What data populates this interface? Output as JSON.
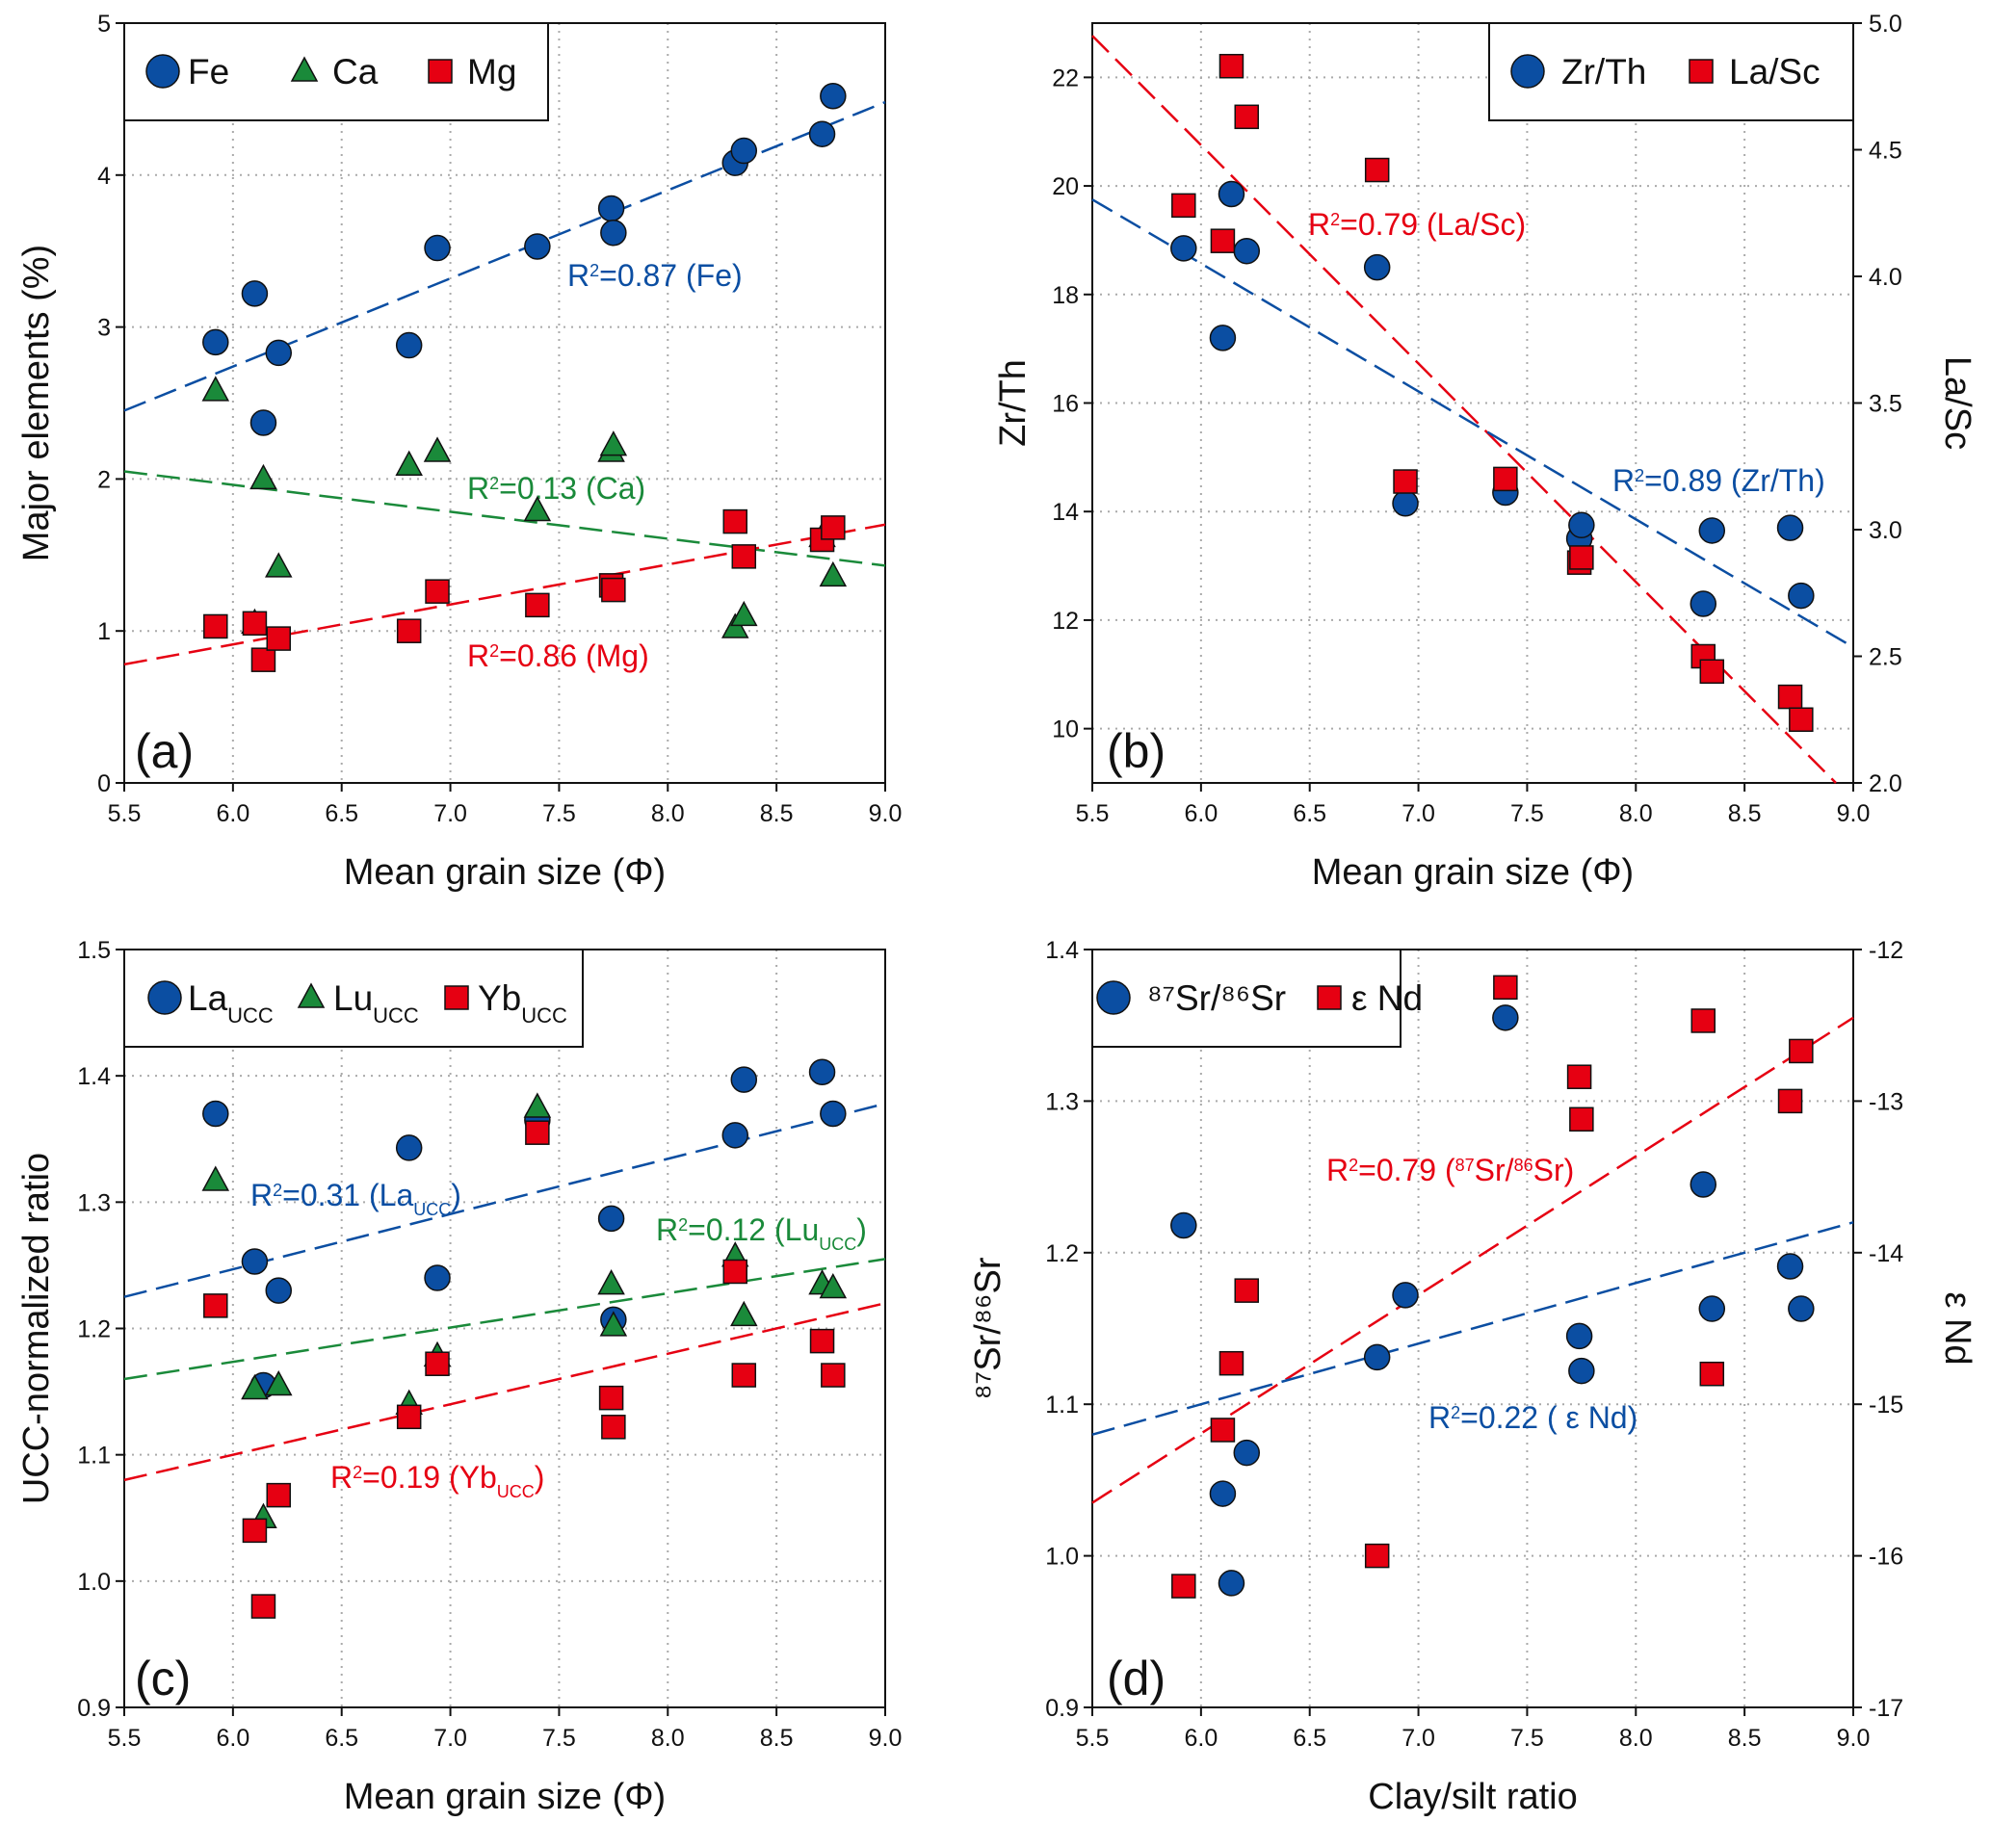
{
  "chart_data": [
    {
      "panel_label": "(a)",
      "type": "scatter",
      "xlabel": "Mean grain size (Φ)",
      "ylabel": "Major elements (%)",
      "xlim": [
        5.5,
        9.0
      ],
      "xticks": [
        "5.5",
        "6.0",
        "6.5",
        "7.0",
        "7.5",
        "8.0",
        "8.5",
        "9.0"
      ],
      "ylim": [
        0,
        5
      ],
      "yticks": [
        "0",
        "1",
        "2",
        "3",
        "4",
        "5"
      ],
      "grid": true,
      "legend": "top-left",
      "x": [
        5.92,
        6.1,
        6.14,
        6.21,
        6.81,
        6.94,
        7.4,
        7.74,
        7.75,
        8.31,
        8.35,
        8.71,
        8.76
      ],
      "series": [
        {
          "name": "Fe",
          "marker": "circle",
          "color": "#0b4ea2",
          "axis": "left",
          "values": [
            2.9,
            3.22,
            2.37,
            2.83,
            2.88,
            3.52,
            3.53,
            3.78,
            3.62,
            4.08,
            4.16,
            4.27,
            4.52
          ]
        },
        {
          "name": "Ca",
          "marker": "triangle",
          "color": "#1a8a3a",
          "axis": "left",
          "values": [
            2.58,
            1.05,
            2.0,
            1.42,
            2.09,
            2.18,
            1.79,
            2.18,
            2.22,
            1.02,
            1.1,
            1.62,
            1.36
          ]
        },
        {
          "name": "Mg",
          "marker": "square",
          "color": "#e60012",
          "axis": "left",
          "values": [
            1.03,
            1.05,
            0.81,
            0.95,
            1.0,
            1.26,
            1.17,
            1.3,
            1.27,
            1.72,
            1.49,
            1.6,
            1.68
          ]
        }
      ],
      "trendlines": [
        {
          "color": "#0b4ea2",
          "axis": "left",
          "from": [
            5.5,
            2.45
          ],
          "to": [
            9.0,
            4.48
          ],
          "label": [
            {
              "t": "R"
            },
            {
              "t": "2",
              "s": "sup"
            },
            {
              "t": "=0.87 (Fe)"
            }
          ]
        },
        {
          "color": "#1a8a3a",
          "axis": "left",
          "from": [
            5.5,
            2.05
          ],
          "to": [
            9.0,
            1.43
          ],
          "label": [
            {
              "t": "R"
            },
            {
              "t": "2",
              "s": "sup"
            },
            {
              "t": "=0.13 (Ca)"
            }
          ]
        },
        {
          "color": "#e60012",
          "axis": "left",
          "from": [
            5.5,
            0.78
          ],
          "to": [
            9.0,
            1.7
          ],
          "label": [
            {
              "t": "R"
            },
            {
              "t": "2",
              "s": "sup"
            },
            {
              "t": "=0.86 (Mg)"
            }
          ]
        }
      ]
    },
    {
      "panel_label": "(b)",
      "type": "scatter",
      "xlabel": "Mean grain size (Φ)",
      "ylabel": "Zr/Th",
      "ylabel_right": "La/Sc",
      "xlim": [
        5.5,
        9.0
      ],
      "xticks": [
        "5.5",
        "6.0",
        "6.5",
        "7.0",
        "7.5",
        "8.0",
        "8.5",
        "9.0"
      ],
      "ylim": [
        9,
        23
      ],
      "yticks": [
        "10",
        "12",
        "14",
        "16",
        "18",
        "20",
        "22"
      ],
      "ylim_right": [
        2.0,
        5.0
      ],
      "yticks_right": [
        "2.0",
        "2.5",
        "3.0",
        "3.5",
        "4.0",
        "4.5",
        "5.0"
      ],
      "grid": true,
      "legend": "top-right",
      "x": [
        5.92,
        6.1,
        6.14,
        6.21,
        6.81,
        6.94,
        7.4,
        7.74,
        7.75,
        8.31,
        8.35,
        8.71,
        8.76
      ],
      "series": [
        {
          "name": "Zr/Th",
          "marker": "circle",
          "color": "#0b4ea2",
          "axis": "left",
          "values": [
            18.85,
            17.2,
            19.85,
            18.8,
            18.5,
            14.15,
            14.35,
            13.5,
            13.75,
            12.3,
            13.65,
            13.7,
            12.45
          ]
        },
        {
          "name": "La/Sc",
          "marker": "square",
          "color": "#e60012",
          "axis": "right",
          "values": [
            4.28,
            4.14,
            4.83,
            4.63,
            4.42,
            3.19,
            3.2,
            2.87,
            2.89,
            2.5,
            2.44,
            2.34,
            2.25
          ]
        }
      ],
      "trendlines": [
        {
          "color": "#e60012",
          "axis": "right",
          "from": [
            5.5,
            4.95
          ],
          "to": [
            8.92,
            2.0
          ],
          "label": [
            {
              "t": "R"
            },
            {
              "t": "2",
              "s": "sup"
            },
            {
              "t": "=0.79 (La/Sc)"
            }
          ]
        },
        {
          "color": "#0b4ea2",
          "axis": "left",
          "from": [
            5.5,
            19.75
          ],
          "to": [
            9.0,
            11.5
          ],
          "label": [
            {
              "t": "R"
            },
            {
              "t": "2",
              "s": "sup"
            },
            {
              "t": "=0.89 (Zr/Th)"
            }
          ]
        }
      ]
    },
    {
      "panel_label": "(c)",
      "type": "scatter",
      "xlabel": "Mean grain size (Φ)",
      "ylabel": "UCC-normalized ratio",
      "xlim": [
        5.5,
        9.0
      ],
      "xticks": [
        "5.5",
        "6.0",
        "6.5",
        "7.0",
        "7.5",
        "8.0",
        "8.5",
        "9.0"
      ],
      "ylim": [
        0.9,
        1.5
      ],
      "yticks": [
        "0.9",
        "1.0",
        "1.1",
        "1.2",
        "1.3",
        "1.4",
        "1.5"
      ],
      "grid": true,
      "legend": "top-left",
      "x": [
        5.92,
        6.1,
        6.14,
        6.21,
        6.81,
        6.94,
        7.4,
        7.74,
        7.75,
        8.31,
        8.35,
        8.71,
        8.76
      ],
      "series": [
        {
          "name": "La",
          "name_sub": "UCC",
          "marker": "circle",
          "color": "#0b4ea2",
          "axis": "left",
          "values": [
            1.37,
            1.253,
            1.155,
            1.23,
            1.343,
            1.24,
            1.365,
            1.287,
            1.207,
            1.353,
            1.397,
            1.403,
            1.37
          ]
        },
        {
          "name": "Lu",
          "name_sub": "UCC",
          "marker": "triangle",
          "color": "#1a8a3a",
          "axis": "left",
          "values": [
            1.317,
            1.152,
            1.05,
            1.155,
            1.14,
            1.178,
            1.375,
            1.235,
            1.202,
            1.257,
            1.21,
            1.235,
            1.232
          ]
        },
        {
          "name": "Yb",
          "name_sub": "UCC",
          "marker": "square",
          "color": "#e60012",
          "axis": "left",
          "values": [
            1.218,
            1.04,
            0.98,
            1.068,
            1.13,
            1.172,
            1.355,
            1.145,
            1.122,
            1.245,
            1.163,
            1.19,
            1.163
          ]
        }
      ],
      "trendlines": [
        {
          "color": "#0b4ea2",
          "axis": "left",
          "from": [
            5.5,
            1.225
          ],
          "to": [
            9.0,
            1.378
          ],
          "label": [
            {
              "t": "R"
            },
            {
              "t": "2",
              "s": "sup"
            },
            {
              "t": "=0.31 (La"
            },
            {
              "t": "UCC",
              "s": "sub"
            },
            {
              "t": ")"
            }
          ]
        },
        {
          "color": "#1a8a3a",
          "axis": "left",
          "from": [
            5.5,
            1.16
          ],
          "to": [
            9.0,
            1.255
          ],
          "label": [
            {
              "t": "R"
            },
            {
              "t": "2",
              "s": "sup"
            },
            {
              "t": "=0.12 (Lu"
            },
            {
              "t": "UCC",
              "s": "sub"
            },
            {
              "t": ")"
            }
          ]
        },
        {
          "color": "#e60012",
          "axis": "left",
          "from": [
            5.5,
            1.08
          ],
          "to": [
            9.0,
            1.22
          ],
          "label": [
            {
              "t": "R"
            },
            {
              "t": "2",
              "s": "sup"
            },
            {
              "t": "=0.19 (Yb"
            },
            {
              "t": "UCC",
              "s": "sub"
            },
            {
              "t": ")"
            }
          ]
        }
      ]
    },
    {
      "panel_label": "(d)",
      "type": "scatter",
      "xlabel": "Clay/silt ratio",
      "ylabel": "⁸⁷Sr/⁸⁶Sr",
      "ylabel_right": "ε Nd",
      "xlim": [
        5.5,
        9.0
      ],
      "xticks": [
        "5.5",
        "6.0",
        "6.5",
        "7.0",
        "7.5",
        "8.0",
        "8.5",
        "9.0"
      ],
      "ylim": [
        0.9,
        1.4
      ],
      "yticks": [
        "0.9",
        "1.0",
        "1.1",
        "1.2",
        "1.3",
        "1.4"
      ],
      "ylim_right": [
        -17,
        -12
      ],
      "yticks_right": [
        "-17",
        "-16",
        "-15",
        "-14",
        "-13",
        "-12"
      ],
      "grid": true,
      "legend": "top-left",
      "x": [
        5.92,
        6.1,
        6.14,
        6.21,
        6.81,
        6.94,
        7.4,
        7.74,
        7.75,
        8.31,
        8.35,
        8.71,
        8.76
      ],
      "series": [
        {
          "name": "⁸⁷Sr/⁸⁶Sr",
          "marker": "circle",
          "color": "#0b4ea2",
          "axis": "left",
          "values": [
            1.218,
            1.041,
            0.982,
            1.068,
            1.131,
            1.172,
            1.355,
            1.145,
            1.122,
            1.245,
            1.163,
            1.191,
            1.163
          ]
        },
        {
          "name": "ε Nd",
          "marker": "square",
          "color": "#e60012",
          "axis": "right",
          "values": [
            -16.2,
            -15.17,
            -14.73,
            -14.25,
            -16.0,
            null,
            -12.25,
            -12.84,
            -13.12,
            -12.47,
            -14.8,
            -13.0,
            -12.67
          ]
        }
      ],
      "trendlines": [
        {
          "color": "#e60012",
          "axis": "left",
          "from": [
            5.5,
            1.035
          ],
          "to": [
            9.0,
            1.355
          ],
          "label": [
            {
              "t": "R"
            },
            {
              "t": "2",
              "s": "sup"
            },
            {
              "t": "=0.79 ("
            },
            {
              "t": "87",
              "s": "sup"
            },
            {
              "t": "Sr/"
            },
            {
              "t": "86",
              "s": "sup"
            },
            {
              "t": "Sr)"
            }
          ]
        },
        {
          "color": "#0b4ea2",
          "axis": "left",
          "from": [
            5.5,
            1.08
          ],
          "to": [
            9.0,
            1.22
          ],
          "label": [
            {
              "t": "R"
            },
            {
              "t": "2",
              "s": "sup"
            },
            {
              "t": "=0.22 ( ε Nd)"
            }
          ]
        }
      ]
    }
  ]
}
